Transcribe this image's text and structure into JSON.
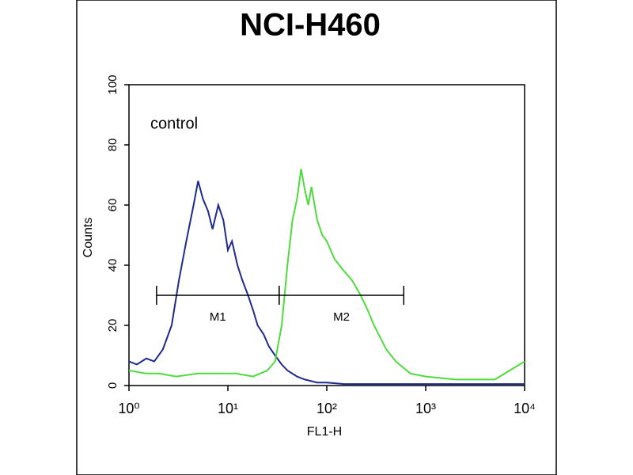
{
  "chart_data": {
    "type": "line",
    "title": "NCI-H460",
    "xlabel": "FL1-H",
    "ylabel": "Counts",
    "xscale": "log",
    "xlim": [
      1,
      10000
    ],
    "xticks": [
      {
        "value": 1,
        "label": "10⁰"
      },
      {
        "value": 10,
        "label": "10¹"
      },
      {
        "value": 100,
        "label": "10²"
      },
      {
        "value": 1000,
        "label": "10³"
      },
      {
        "value": 10000,
        "label": "10⁴"
      }
    ],
    "ylim": [
      0,
      100
    ],
    "yticks": [
      0,
      20,
      40,
      60,
      80,
      100
    ],
    "annotation": "control",
    "series": [
      {
        "color": "#1f2a8c",
        "x": [
          1,
          1.2,
          1.5,
          1.8,
          2.2,
          2.7,
          3.2,
          3.8,
          4.5,
          5,
          5.6,
          6.3,
          7,
          8,
          9,
          10,
          11,
          12.5,
          14,
          16,
          18,
          20,
          23,
          26,
          30,
          35,
          40,
          50,
          60,
          80,
          100,
          150,
          200,
          400,
          1000,
          3000,
          10000
        ],
        "values": [
          8,
          7,
          9,
          8,
          12,
          20,
          35,
          48,
          60,
          68,
          62,
          58,
          52,
          60,
          55,
          45,
          48,
          40,
          35,
          30,
          25,
          20,
          17,
          13,
          10,
          7,
          5,
          3,
          2,
          1,
          1,
          0.5,
          0.5,
          0.5,
          0.5,
          0.5,
          0.5
        ]
      },
      {
        "color": "#4ddc3c",
        "x": [
          1,
          1.5,
          2,
          3,
          5,
          8,
          12,
          18,
          25,
          30,
          35,
          40,
          45,
          50,
          55,
          60,
          65,
          70,
          80,
          90,
          100,
          120,
          150,
          180,
          220,
          260,
          300,
          400,
          500,
          700,
          1000,
          2000,
          5000,
          10000
        ],
        "values": [
          5,
          4,
          4,
          3,
          4,
          4,
          4,
          3,
          5,
          8,
          20,
          40,
          55,
          62,
          72,
          65,
          60,
          66,
          55,
          50,
          48,
          42,
          38,
          35,
          30,
          25,
          20,
          12,
          8,
          4,
          3,
          2,
          2,
          8
        ]
      }
    ],
    "markers": [
      {
        "label": "M1",
        "range": [
          1.9,
          33
        ],
        "y": 30
      },
      {
        "label": "M2",
        "range": [
          33,
          600
        ],
        "y": 30
      }
    ]
  }
}
